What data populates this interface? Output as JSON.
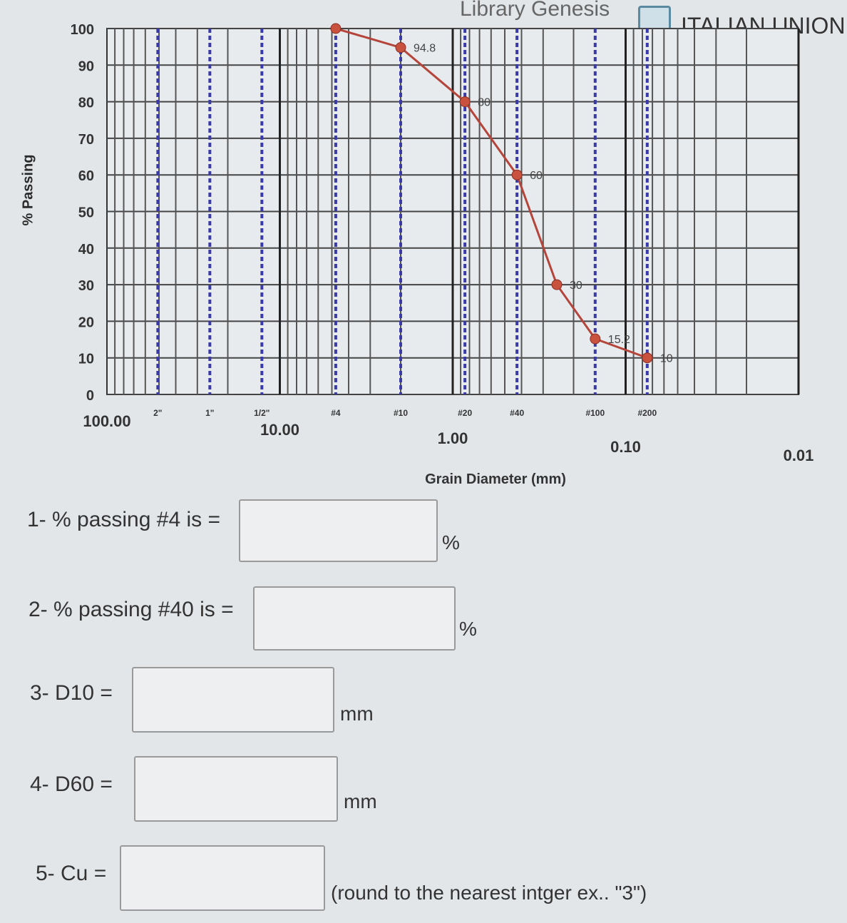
{
  "header": {
    "library_text": "Library Genesis",
    "union_text": "ITALIAN UNION C"
  },
  "chart_data": {
    "type": "line",
    "xlabel": "Grain Diameter (mm)",
    "ylabel": "% Passing",
    "x_scale": "log",
    "xlim": [
      100,
      0.01
    ],
    "ylim": [
      0,
      100
    ],
    "x_tick_labels": [
      "100.00",
      "10.00",
      "1.00",
      "0.10",
      "0.01"
    ],
    "y_tick_labels": [
      "0",
      "10",
      "20",
      "30",
      "40",
      "50",
      "60",
      "70",
      "80",
      "90",
      "100"
    ],
    "grid": true,
    "sieves": [
      {
        "label": "2\"",
        "size": 50.8
      },
      {
        "label": "1\"",
        "size": 25.4
      },
      {
        "label": "1/2\"",
        "size": 12.7
      },
      {
        "label": "#4",
        "size": 4.75
      },
      {
        "label": "#10",
        "size": 2.0
      },
      {
        "label": "#20",
        "size": 0.85
      },
      {
        "label": "#40",
        "size": 0.425
      },
      {
        "label": "#100",
        "size": 0.15
      },
      {
        "label": "#200",
        "size": 0.075
      }
    ],
    "series": [
      {
        "color": "#b5443a",
        "points": [
          {
            "x": 4.75,
            "y": 100,
            "label": ""
          },
          {
            "x": 2.0,
            "y": 94.8,
            "label": "94.8"
          },
          {
            "x": 0.85,
            "y": 80,
            "label": "80"
          },
          {
            "x": 0.425,
            "y": 60,
            "label": "60"
          },
          {
            "x": 0.25,
            "y": 30,
            "label": "30"
          },
          {
            "x": 0.15,
            "y": 15.2,
            "label": "15.2"
          },
          {
            "x": 0.075,
            "y": 10,
            "label": "10"
          }
        ]
      }
    ]
  },
  "questions": [
    {
      "label": "1- % passing #4 is =",
      "value": "",
      "unit": "%"
    },
    {
      "label": "2- % passing #40 is =",
      "value": "",
      "unit": "%"
    },
    {
      "label": "3- D10 =",
      "value": "",
      "unit": "mm"
    },
    {
      "label": "4- D60 =",
      "value": "",
      "unit": "mm"
    },
    {
      "label": "5- Cu =",
      "value": "",
      "unit": "(round to the nearest intger ex.. \"3\")"
    }
  ]
}
